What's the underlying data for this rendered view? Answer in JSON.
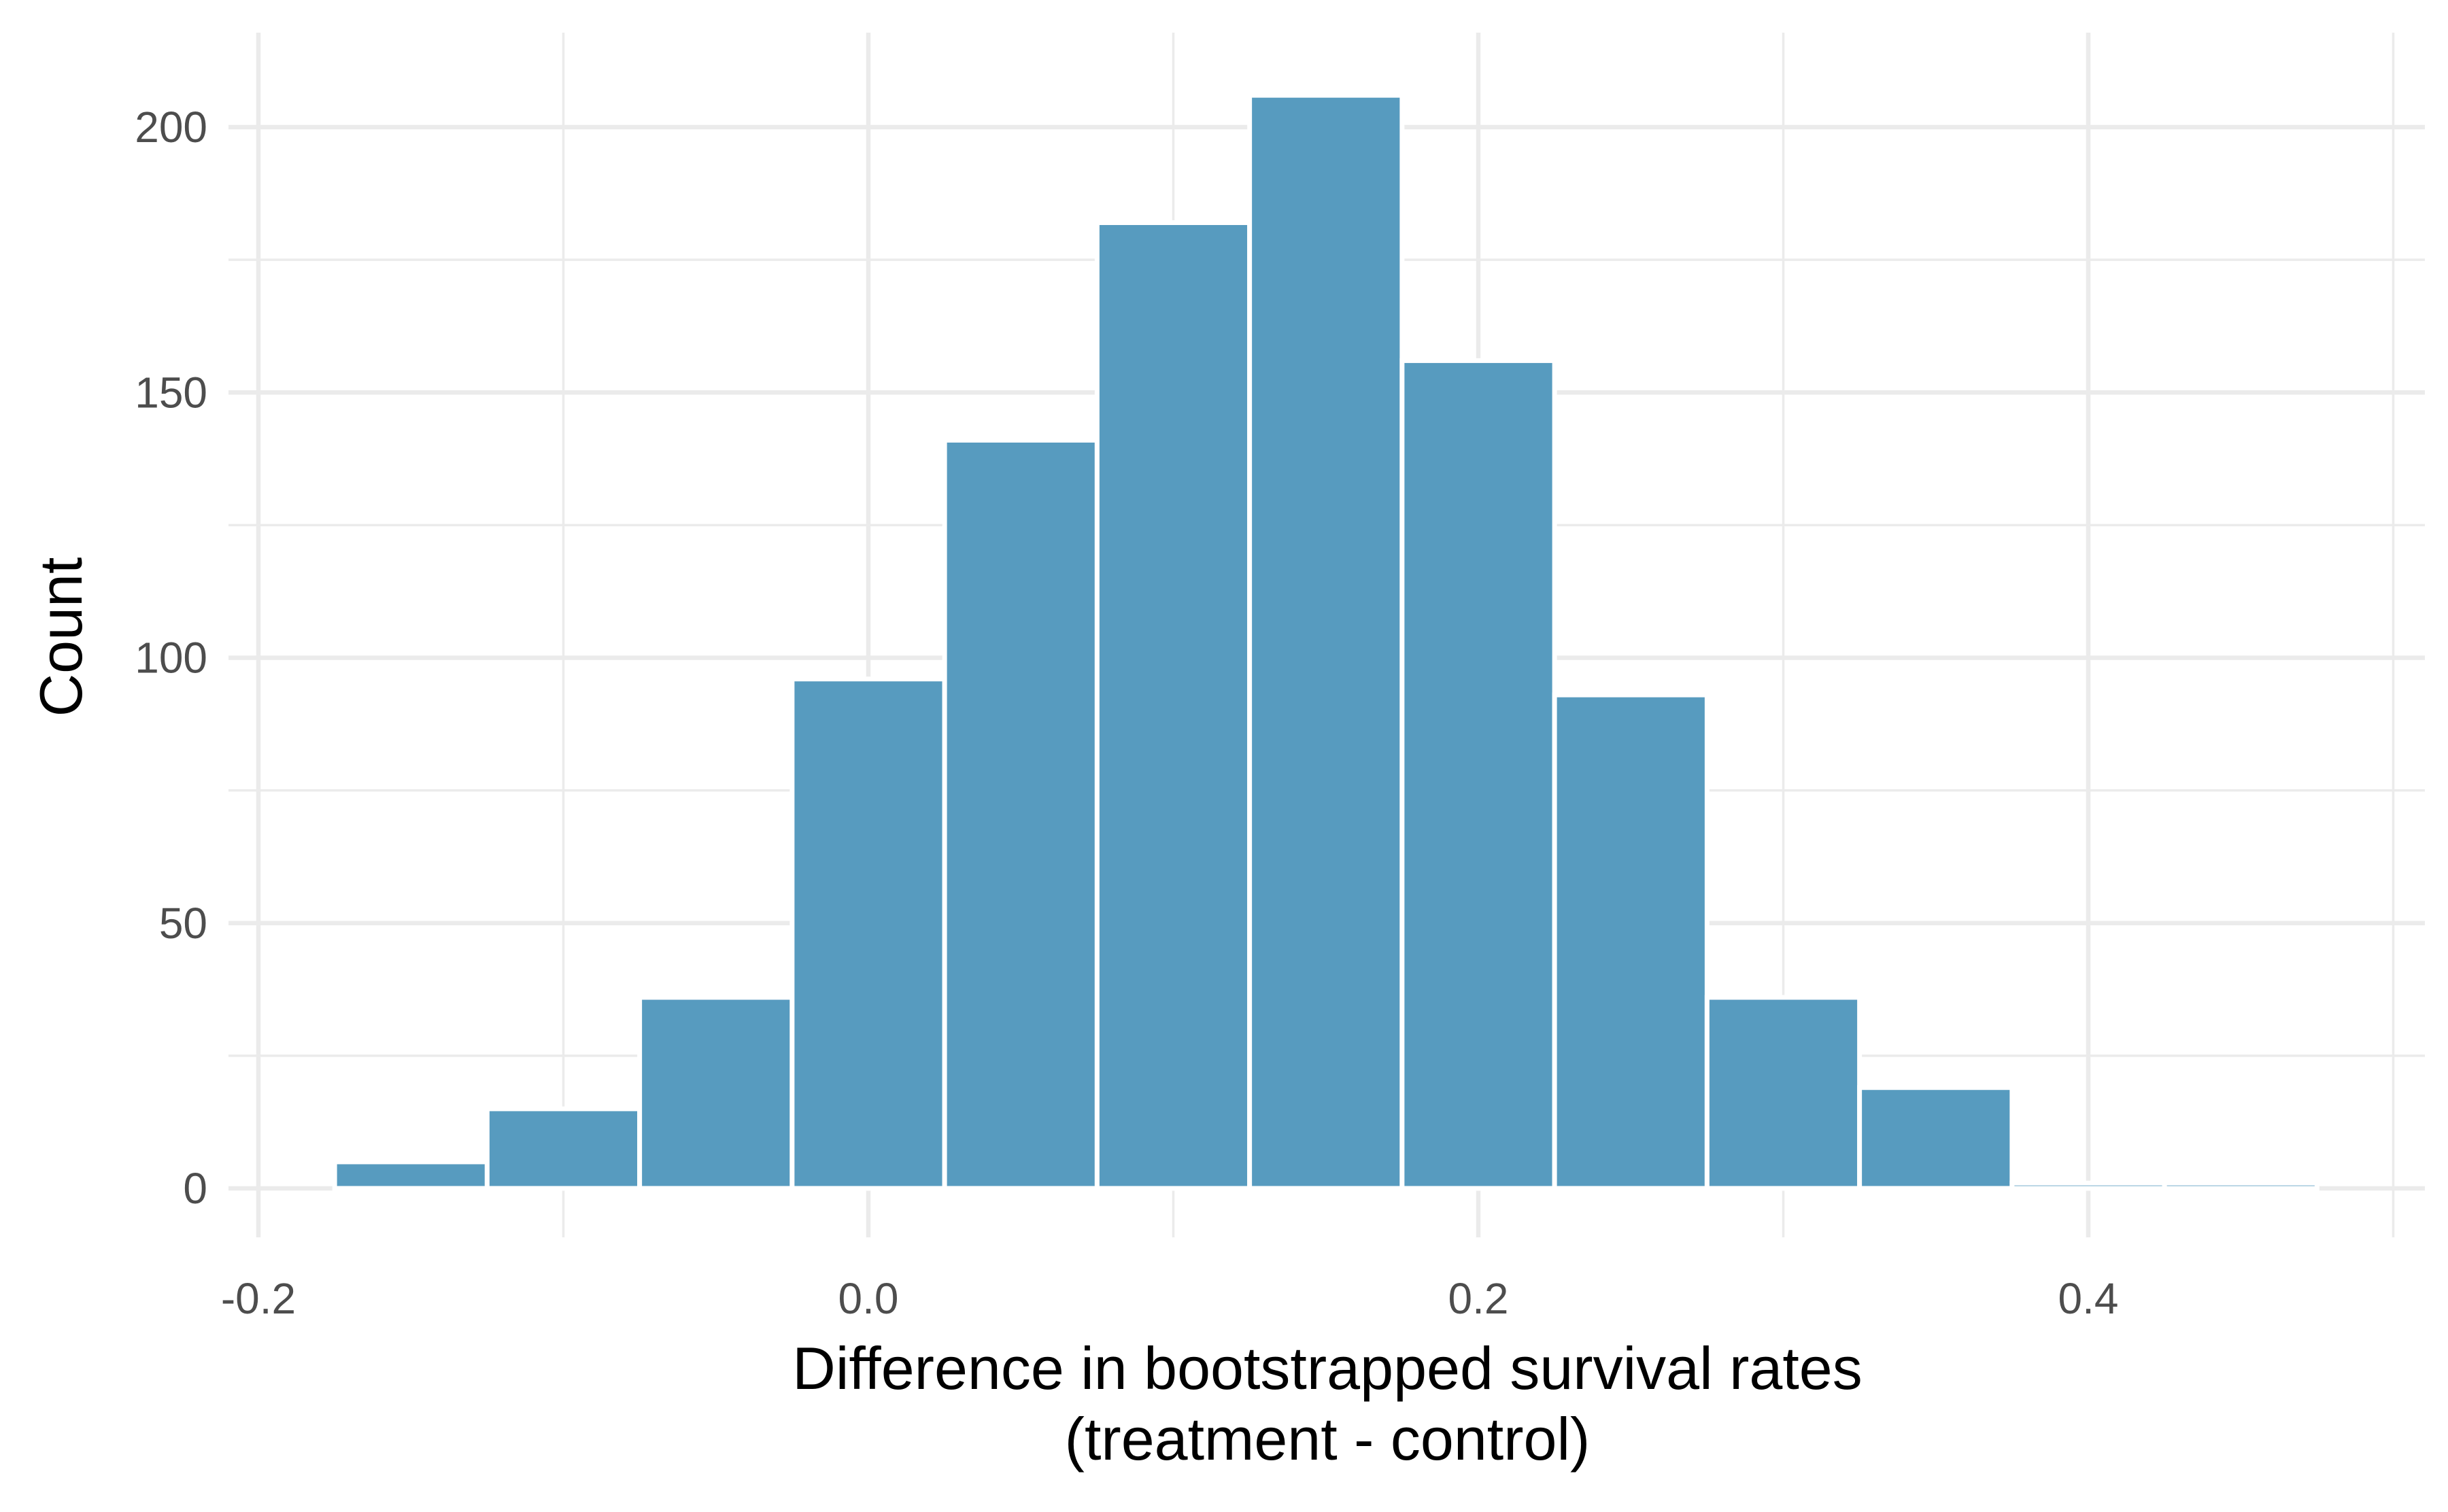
{
  "chart_data": {
    "type": "bar",
    "title": "",
    "xlabel": "Difference in bootstrapped survival rates",
    "xlabel_line2": "(treatment - control)",
    "ylabel": "Count",
    "xlim": [
      -0.2,
      0.5
    ],
    "ylim": [
      -10,
      218
    ],
    "grid": true,
    "bin_width": 0.05,
    "bar_color": "#579bbf",
    "x_ticks": [
      {
        "value": -0.2,
        "label": "-0.2"
      },
      {
        "value": 0.0,
        "label": "0.0"
      },
      {
        "value": 0.2,
        "label": "0.2"
      },
      {
        "value": 0.4,
        "label": "0.4"
      }
    ],
    "x_minor_ticks": [
      -0.1,
      0.1,
      0.3,
      0.5
    ],
    "y_ticks": [
      {
        "value": 0,
        "label": "0"
      },
      {
        "value": 50,
        "label": "50"
      },
      {
        "value": 100,
        "label": "100"
      },
      {
        "value": 150,
        "label": "150"
      },
      {
        "value": 200,
        "label": "200"
      }
    ],
    "y_minor_ticks": [
      25,
      75,
      125,
      175
    ],
    "bin_centers": [
      -0.15,
      -0.1,
      -0.05,
      0.0,
      0.05,
      0.1,
      0.15,
      0.2,
      0.25,
      0.3,
      0.35,
      0.4,
      0.45
    ],
    "values": [
      5,
      15,
      36,
      96,
      141,
      182,
      206,
      156,
      93,
      36,
      19,
      1,
      1
    ]
  }
}
